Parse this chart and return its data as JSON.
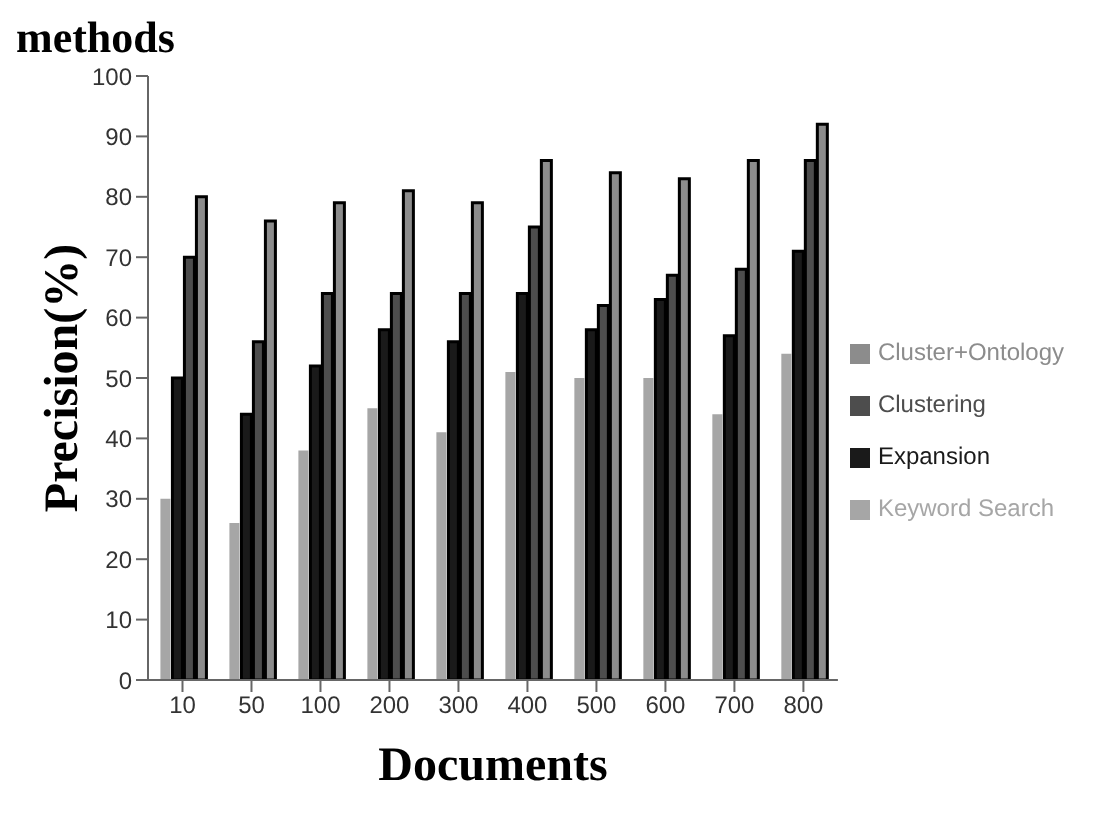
{
  "chart_data": {
    "type": "bar",
    "title": "methods",
    "xlabel": "Documents",
    "ylabel": "Precision(%)",
    "categories": [
      "10",
      "50",
      "100",
      "200",
      "300",
      "400",
      "500",
      "600",
      "700",
      "800"
    ],
    "series": [
      {
        "name": "Keyword Search",
        "color": "#a6a6a6",
        "values": [
          30,
          26,
          38,
          45,
          41,
          51,
          50,
          50,
          44,
          54
        ]
      },
      {
        "name": "Expansion",
        "color": "#1a1a1a",
        "values": [
          50,
          44,
          52,
          58,
          56,
          64,
          58,
          63,
          57,
          71
        ]
      },
      {
        "name": "Clustering",
        "color": "#4d4d4d",
        "values": [
          70,
          56,
          64,
          64,
          64,
          75,
          62,
          67,
          68,
          86
        ]
      },
      {
        "name": "Cluster+Ontology",
        "color": "#8c8c8c",
        "values": [
          80,
          76,
          79,
          81,
          79,
          86,
          84,
          83,
          86,
          92
        ]
      }
    ],
    "ylim": [
      0,
      100
    ],
    "yticks": [
      0,
      10,
      20,
      30,
      40,
      50,
      60,
      70,
      80,
      90,
      100
    ],
    "grid": false,
    "legend": "right"
  }
}
